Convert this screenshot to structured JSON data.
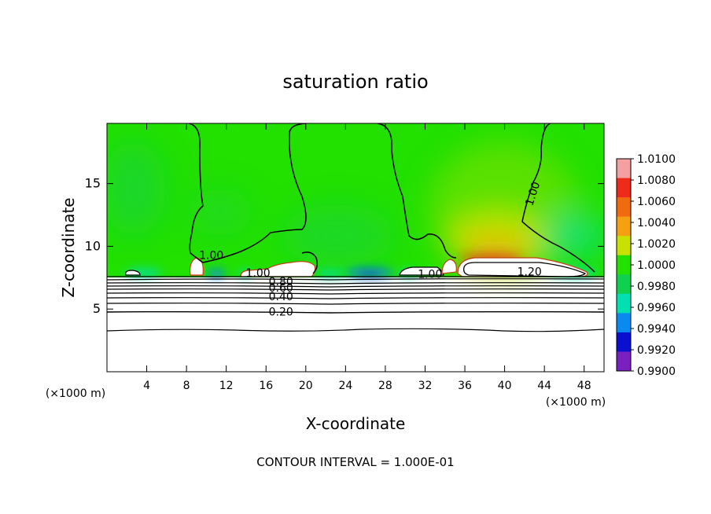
{
  "chart_data": {
    "type": "heatmap",
    "title": "saturation ratio",
    "xlabel": "X-coordinate",
    "ylabel": "Z-coordinate",
    "x_unit_left": "(×1000 m)",
    "x_unit_right": "(×1000 m)",
    "footer": "CONTOUR INTERVAL = 1.000E-01",
    "xlim": [
      0,
      50
    ],
    "ylim": [
      0,
      19.8
    ],
    "x_ticks": [
      4,
      8,
      12,
      16,
      20,
      24,
      28,
      32,
      36,
      40,
      44,
      48
    ],
    "y_ticks": [
      5,
      10,
      15
    ],
    "grid": false,
    "legend": "right",
    "colorbar": {
      "min": 0.99,
      "max": 1.01,
      "labels": [
        "1.0100",
        "1.0080",
        "1.0060",
        "1.0040",
        "1.0020",
        "1.0000",
        "0.9980",
        "0.9960",
        "0.9940",
        "0.9920",
        "0.9900"
      ],
      "colors": [
        "#f5a0a0",
        "#ee2a1a",
        "#f26a10",
        "#f5a012",
        "#c8e100",
        "#22e000",
        "#10d050",
        "#00e0b0",
        "#0a8af0",
        "#0a10d0",
        "#7a20c0"
      ]
    },
    "contour_labels": [
      {
        "text": "1.00",
        "x": 10.5,
        "y": 9.3
      },
      {
        "text": "1.00",
        "x": 15.2,
        "y": 7.9
      },
      {
        "text": "0.80",
        "x": 17.5,
        "y": 7.2
      },
      {
        "text": "0.60",
        "x": 17.5,
        "y": 6.7
      },
      {
        "text": "0.40",
        "x": 17.5,
        "y": 6.0
      },
      {
        "text": "0.20",
        "x": 17.5,
        "y": 4.8
      },
      {
        "text": "1.00",
        "x": 32.5,
        "y": 7.8
      },
      {
        "text": "1.20",
        "x": 42.5,
        "y": 8.0
      },
      {
        "text": "1.00",
        "x": 42.8,
        "y": 14.2
      }
    ]
  }
}
